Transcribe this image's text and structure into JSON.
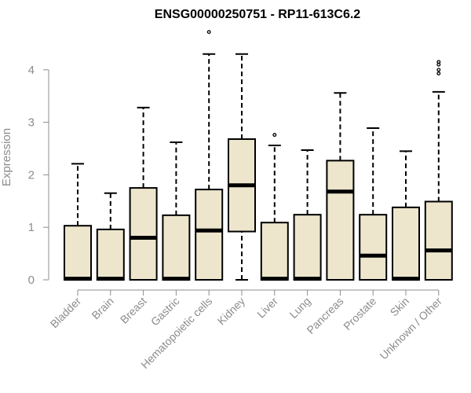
{
  "chart_data": {
    "type": "boxplot",
    "title": "ENSG00000250751 - RP11-613C6.2",
    "ylabel": "Expression",
    "xlabel": "",
    "ylim": [
      0,
      4.6
    ],
    "yticks": [
      0,
      1,
      2,
      3,
      4
    ],
    "grid": false,
    "box_fill": "#ede6cd",
    "box_stroke": "#000000",
    "axis_color": "#8c8c8c",
    "categories": [
      "Bladder",
      "Brain",
      "Breast",
      "Gastric",
      "Hematopoietic cells",
      "Kidney",
      "Liver",
      "Lung",
      "Pancreas",
      "Prostate",
      "Skin",
      "Unknown / Other"
    ],
    "boxes": [
      {
        "min": 0,
        "q1": 0,
        "median": 0.02,
        "q3": 1.03,
        "max": 2.21,
        "outliers": []
      },
      {
        "min": 0,
        "q1": 0,
        "median": 0.02,
        "q3": 0.96,
        "max": 1.65,
        "outliers": []
      },
      {
        "min": 0,
        "q1": 0,
        "median": 0.8,
        "q3": 1.75,
        "max": 3.28,
        "outliers": []
      },
      {
        "min": 0,
        "q1": 0,
        "median": 0.02,
        "q3": 1.23,
        "max": 2.62,
        "outliers": []
      },
      {
        "min": 0,
        "q1": 0,
        "median": 0.94,
        "q3": 1.72,
        "max": 4.3,
        "outliers": [
          4.72
        ]
      },
      {
        "min": 0,
        "q1": 0.92,
        "median": 1.8,
        "q3": 2.68,
        "max": 4.3,
        "outliers": []
      },
      {
        "min": 0,
        "q1": 0,
        "median": 0.02,
        "q3": 1.09,
        "max": 2.56,
        "outliers": [
          2.76
        ]
      },
      {
        "min": 0,
        "q1": 0,
        "median": 0.02,
        "q3": 1.24,
        "max": 2.47,
        "outliers": []
      },
      {
        "min": 0,
        "q1": 0,
        "median": 1.68,
        "q3": 2.27,
        "max": 3.56,
        "outliers": []
      },
      {
        "min": 0,
        "q1": 0,
        "median": 0.46,
        "q3": 1.24,
        "max": 2.89,
        "outliers": []
      },
      {
        "min": 0,
        "q1": 0,
        "median": 0.02,
        "q3": 1.38,
        "max": 2.45,
        "outliers": []
      },
      {
        "min": 0,
        "q1": 0,
        "median": 0.56,
        "q3": 1.49,
        "max": 3.58,
        "outliers": [
          3.93,
          4.0,
          4.1,
          4.15
        ]
      }
    ]
  }
}
